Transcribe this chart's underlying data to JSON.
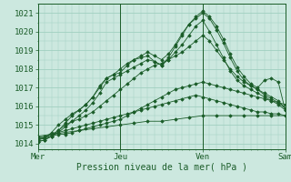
{
  "bg_color": "#cce8df",
  "grid_color": "#a0cfc0",
  "line_color": "#1a5c28",
  "ylabel_ticks": [
    1014,
    1015,
    1016,
    1017,
    1018,
    1019,
    1020,
    1021
  ],
  "ylim": [
    1013.7,
    1021.5
  ],
  "xlim": [
    0,
    72
  ],
  "xtick_positions": [
    0,
    24,
    48,
    72
  ],
  "xtick_labels": [
    "Mer",
    "Jeu",
    "Ven",
    "Sam"
  ],
  "xlabel": "Pression niveau de la mer( hPa )",
  "label_fontsize": 7,
  "tick_fontsize": 6.5,
  "series": [
    [
      0,
      1014.3,
      2,
      1014.4,
      4,
      1014.5,
      6,
      1014.6,
      8,
      1014.7,
      10,
      1014.8,
      12,
      1014.9,
      14,
      1015.0,
      16,
      1015.1,
      18,
      1015.2,
      20,
      1015.3,
      22,
      1015.4,
      24,
      1015.5,
      26,
      1015.6,
      28,
      1015.7,
      30,
      1015.8,
      32,
      1015.9,
      34,
      1016.0,
      36,
      1016.1,
      38,
      1016.2,
      40,
      1016.3,
      42,
      1016.4,
      44,
      1016.5,
      46,
      1016.6,
      48,
      1016.5,
      50,
      1016.4,
      52,
      1016.3,
      54,
      1016.2,
      56,
      1016.1,
      58,
      1016.0,
      60,
      1015.9,
      62,
      1015.8,
      64,
      1015.7,
      66,
      1015.7,
      68,
      1015.6,
      70,
      1015.6,
      72,
      1015.5
    ],
    [
      0,
      1014.4,
      4,
      1014.5,
      8,
      1014.6,
      12,
      1014.7,
      16,
      1014.8,
      20,
      1014.9,
      24,
      1015.0,
      28,
      1015.1,
      32,
      1015.2,
      36,
      1015.2,
      40,
      1015.3,
      44,
      1015.4,
      48,
      1015.5,
      52,
      1015.5,
      56,
      1015.5,
      60,
      1015.5,
      64,
      1015.5,
      68,
      1015.5,
      72,
      1015.5
    ],
    [
      0,
      1014.3,
      2,
      1014.3,
      4,
      1014.4,
      6,
      1014.5,
      8,
      1014.5,
      10,
      1014.6,
      12,
      1014.7,
      14,
      1014.8,
      16,
      1014.9,
      18,
      1015.0,
      20,
      1015.1,
      22,
      1015.2,
      24,
      1015.3,
      26,
      1015.5,
      28,
      1015.7,
      30,
      1015.9,
      32,
      1016.1,
      34,
      1016.3,
      36,
      1016.5,
      38,
      1016.7,
      40,
      1016.9,
      42,
      1017.0,
      44,
      1017.1,
      46,
      1017.2,
      48,
      1017.3,
      50,
      1017.2,
      52,
      1017.1,
      54,
      1017.0,
      56,
      1016.9,
      58,
      1016.8,
      60,
      1016.7,
      62,
      1016.6,
      64,
      1016.5,
      66,
      1016.4,
      68,
      1016.3,
      70,
      1016.2,
      72,
      1016.1
    ],
    [
      0,
      1014.2,
      2,
      1014.3,
      4,
      1014.5,
      6,
      1014.7,
      8,
      1015.0,
      10,
      1015.2,
      12,
      1015.3,
      14,
      1015.5,
      16,
      1015.7,
      18,
      1016.0,
      20,
      1016.3,
      22,
      1016.6,
      24,
      1016.9,
      26,
      1017.2,
      28,
      1017.5,
      30,
      1017.8,
      32,
      1018.0,
      34,
      1018.2,
      36,
      1018.3,
      38,
      1018.5,
      40,
      1018.7,
      42,
      1018.9,
      44,
      1019.2,
      46,
      1019.5,
      48,
      1019.8,
      50,
      1019.5,
      52,
      1019.0,
      54,
      1018.5,
      56,
      1018.0,
      58,
      1017.6,
      60,
      1017.3,
      62,
      1017.1,
      64,
      1016.9,
      66,
      1016.7,
      68,
      1016.5,
      70,
      1016.3,
      72,
      1015.9
    ],
    [
      0,
      1014.1,
      2,
      1014.2,
      4,
      1014.4,
      6,
      1014.6,
      8,
      1014.9,
      10,
      1015.2,
      12,
      1015.5,
      14,
      1015.8,
      16,
      1016.2,
      18,
      1016.7,
      20,
      1017.3,
      22,
      1017.5,
      24,
      1017.7,
      26,
      1017.9,
      28,
      1018.1,
      30,
      1018.3,
      32,
      1018.5,
      34,
      1018.4,
      36,
      1018.2,
      38,
      1018.5,
      40,
      1018.9,
      42,
      1019.3,
      44,
      1019.8,
      46,
      1020.3,
      48,
      1020.6,
      50,
      1020.0,
      52,
      1019.3,
      54,
      1018.6,
      56,
      1017.9,
      58,
      1017.4,
      60,
      1017.1,
      62,
      1016.9,
      64,
      1016.7,
      66,
      1016.5,
      68,
      1016.3,
      70,
      1016.1,
      72,
      1015.8
    ],
    [
      0,
      1014.1,
      2,
      1014.2,
      4,
      1014.4,
      6,
      1014.7,
      8,
      1015.1,
      10,
      1015.5,
      12,
      1015.8,
      14,
      1016.1,
      16,
      1016.5,
      18,
      1017.0,
      20,
      1017.5,
      22,
      1017.7,
      24,
      1017.8,
      26,
      1018.2,
      28,
      1018.5,
      30,
      1018.7,
      32,
      1018.9,
      34,
      1018.7,
      36,
      1018.5,
      38,
      1018.8,
      40,
      1019.3,
      42,
      1019.9,
      44,
      1020.4,
      46,
      1020.7,
      48,
      1021.0,
      50,
      1020.7,
      52,
      1020.1,
      54,
      1019.4,
      56,
      1018.6,
      58,
      1017.9,
      60,
      1017.4,
      62,
      1017.1,
      64,
      1016.9,
      66,
      1016.6,
      68,
      1016.4,
      70,
      1016.2,
      72,
      1015.9
    ],
    [
      0,
      1014.2,
      2,
      1014.3,
      4,
      1014.6,
      6,
      1015.0,
      8,
      1015.3,
      10,
      1015.6,
      12,
      1015.8,
      14,
      1016.1,
      16,
      1016.5,
      18,
      1017.1,
      20,
      1017.5,
      22,
      1017.7,
      24,
      1018.0,
      26,
      1018.3,
      28,
      1018.5,
      30,
      1018.6,
      32,
      1018.7,
      34,
      1018.4,
      36,
      1018.2,
      38,
      1018.6,
      40,
      1019.2,
      42,
      1019.8,
      44,
      1020.4,
      46,
      1020.8,
      48,
      1021.1,
      50,
      1020.8,
      52,
      1020.3,
      54,
      1019.6,
      56,
      1018.8,
      58,
      1018.1,
      60,
      1017.6,
      62,
      1017.2,
      64,
      1017.0,
      66,
      1017.4,
      68,
      1017.5,
      70,
      1017.3,
      72,
      1015.8
    ]
  ]
}
